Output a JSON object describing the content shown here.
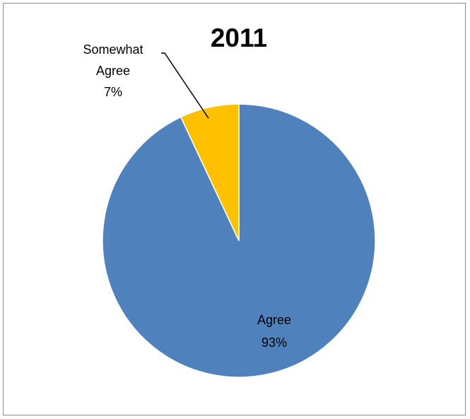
{
  "chart_data": {
    "type": "pie",
    "title": "2011",
    "slices": [
      {
        "label": "Agree",
        "value": 93,
        "value_label": "93%",
        "color": "#4F81BD"
      },
      {
        "label_lines": [
          "Somewhat",
          "Agree"
        ],
        "value": 7,
        "value_label": "7%",
        "color": "#FFC000"
      }
    ],
    "legend": "none",
    "data_labels": "category and percentage"
  }
}
